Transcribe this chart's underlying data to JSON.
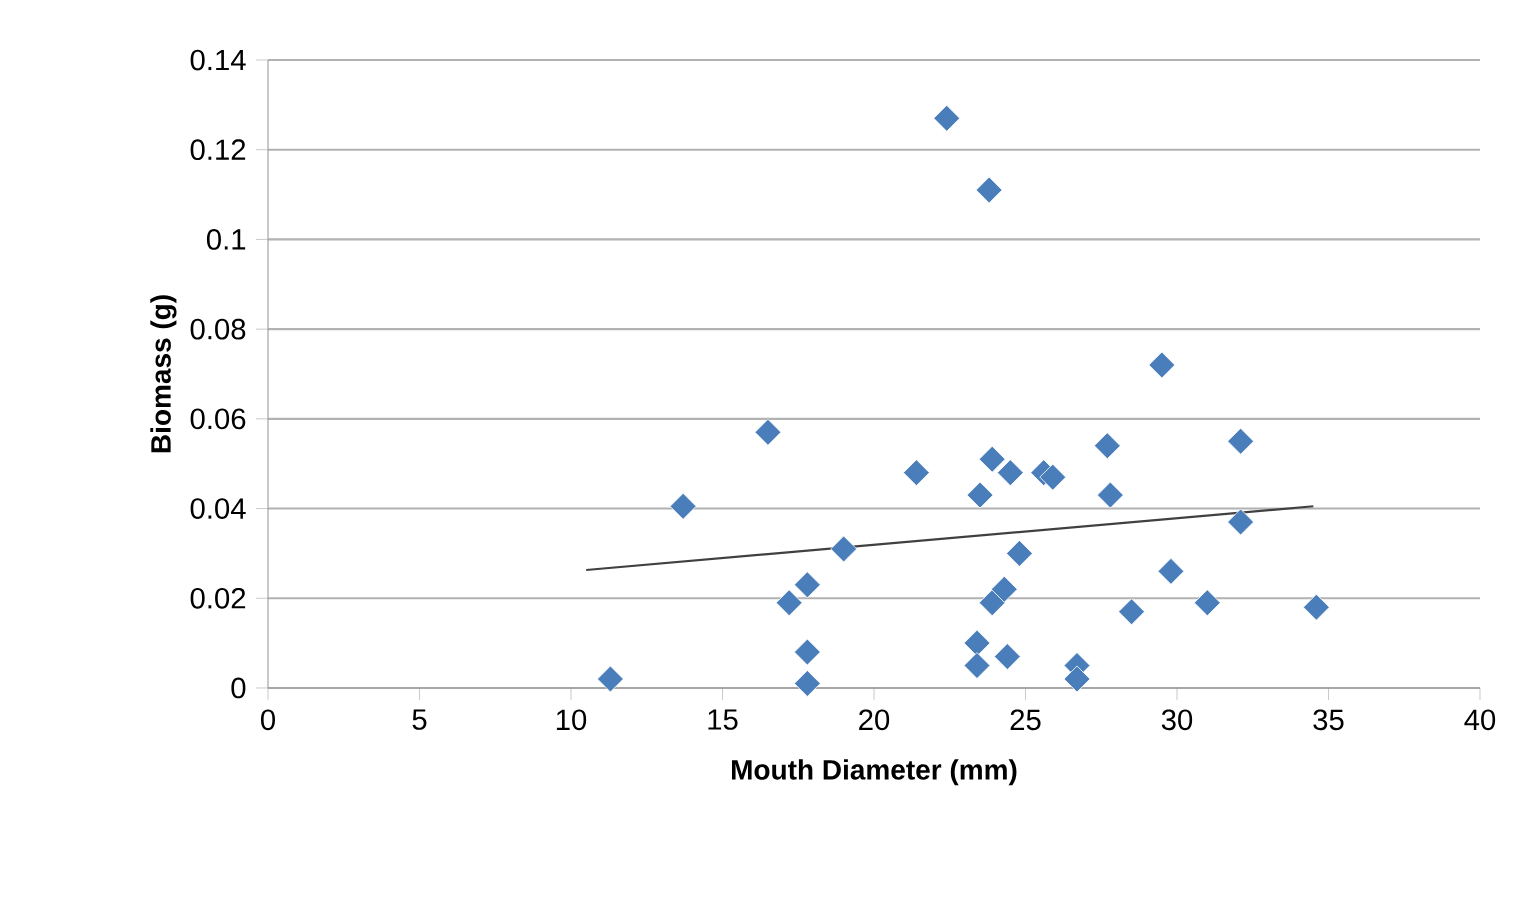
{
  "chart_data": {
    "type": "scatter",
    "xlabel": "Mouth Diameter (mm)",
    "ylabel": "Biomass (g)",
    "xlim": [
      0,
      40
    ],
    "ylim": [
      0,
      0.14
    ],
    "xticks": [
      0,
      5,
      10,
      15,
      20,
      25,
      30,
      35,
      40
    ],
    "yticks": [
      0,
      0.02,
      0.04,
      0.06,
      0.08,
      0.1,
      0.12,
      0.14
    ],
    "grid": "y",
    "series": [
      {
        "color": "#4a7ebb",
        "marker": "diamond",
        "x": [
          11.3,
          13.7,
          16.5,
          17.2,
          17.8,
          17.8,
          17.8,
          19.0,
          21.4,
          22.4,
          23.4,
          23.4,
          23.5,
          23.8,
          23.9,
          23.9,
          24.3,
          24.4,
          24.5,
          24.8,
          25.6,
          25.9,
          26.7,
          26.7,
          27.7,
          27.8,
          28.5,
          29.8,
          29.5,
          31.0,
          32.1,
          32.1,
          34.6
        ],
        "values": [
          0.002,
          0.0405,
          0.057,
          0.019,
          0.023,
          0.008,
          0.001,
          0.031,
          0.048,
          0.127,
          0.01,
          0.005,
          0.043,
          0.111,
          0.051,
          0.019,
          0.022,
          0.007,
          0.048,
          0.03,
          0.048,
          0.047,
          0.005,
          0.002,
          0.054,
          0.043,
          0.017,
          0.026,
          0.072,
          0.019,
          0.037,
          0.055,
          0.018
        ]
      },
      {
        "type": "line",
        "color": "#404040",
        "marker": "none",
        "line_style": "solid",
        "x": [
          10.5,
          34.5
        ],
        "values": [
          0.0263,
          0.0405
        ]
      }
    ]
  }
}
